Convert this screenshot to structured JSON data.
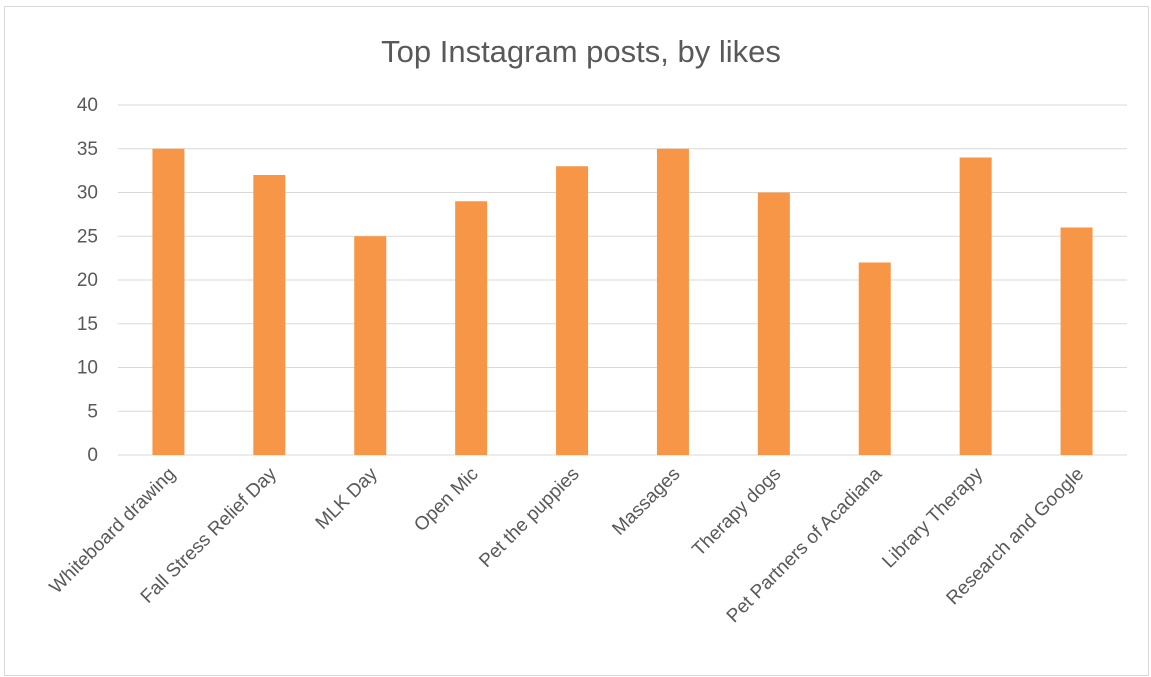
{
  "chart_data": {
    "type": "bar",
    "title": "Top Instagram posts, by likes",
    "xlabel": "",
    "ylabel": "",
    "categories": [
      "Whiteboard drawing",
      "Fall Stress Relief Day",
      "MLK Day",
      "Open Mic",
      "Pet the puppies",
      "Massages",
      "Therapy dogs",
      "Pet Partners of Acadiana",
      "Library Therapy",
      "Research and Google"
    ],
    "values": [
      35,
      32,
      25,
      29,
      33,
      35,
      30,
      22,
      34,
      26
    ],
    "ylim": [
      0,
      40
    ],
    "yticks": [
      "0",
      "5",
      "10",
      "15",
      "20",
      "25",
      "30",
      "35",
      "40"
    ],
    "grid": true,
    "legend": "none",
    "bar_color": "#F79646"
  }
}
